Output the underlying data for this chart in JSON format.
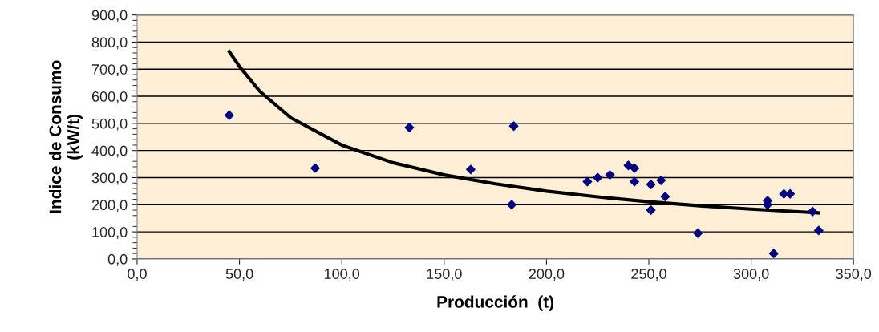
{
  "chart_data": {
    "type": "scatter",
    "xlabel": "Producción  (t)",
    "ylabel": "Indice de Consumo\n(kW/t)",
    "series": [
      {
        "color": "#000080",
        "marker": "diamond",
        "x": [
          45,
          87,
          133,
          163,
          183,
          184,
          220,
          225,
          231,
          240,
          243,
          243,
          251,
          251,
          256,
          258,
          274,
          308,
          308,
          311,
          316,
          319,
          330,
          333
        ],
        "values": [
          530,
          335,
          485,
          330,
          200,
          490,
          285,
          300,
          310,
          345,
          335,
          285,
          275,
          180,
          290,
          230,
          95,
          215,
          200,
          20,
          240,
          240,
          175,
          105
        ]
      },
      {
        "type": "line",
        "color": "#000000",
        "marker": "none",
        "line_style": "solid",
        "x": [
          45,
          50,
          60,
          75,
          100,
          125,
          150,
          175,
          200,
          225,
          250,
          275,
          300,
          333
        ],
        "values": [
          765,
          710,
          618,
          521,
          420,
          355,
          310,
          277,
          250,
          229,
          211,
          196,
          184,
          170
        ]
      }
    ],
    "xlim": [
      0,
      350
    ],
    "ylim": [
      0,
      900
    ],
    "xticks": [
      {
        "value": 0,
        "label": "0,0"
      },
      {
        "value": 50,
        "label": "50,0"
      },
      {
        "value": 100,
        "label": "100,0"
      },
      {
        "value": 150,
        "label": "150,0"
      },
      {
        "value": 200,
        "label": "200,0"
      },
      {
        "value": 250,
        "label": "250,0"
      },
      {
        "value": 300,
        "label": "300,0"
      },
      {
        "value": 350,
        "label": "350,0"
      }
    ],
    "yticks": [
      {
        "value": 0,
        "label": "0,0"
      },
      {
        "value": 100,
        "label": "100,0"
      },
      {
        "value": 200,
        "label": "200,0"
      },
      {
        "value": 300,
        "label": "300,0"
      },
      {
        "value": 400,
        "label": "400,0"
      },
      {
        "value": 500,
        "label": "500,0"
      },
      {
        "value": 600,
        "label": "600,0"
      },
      {
        "value": 700,
        "label": "700,0"
      },
      {
        "value": 800,
        "label": "800,0"
      },
      {
        "value": 900,
        "label": "900,0"
      }
    ],
    "grid": "y",
    "legend": false
  }
}
